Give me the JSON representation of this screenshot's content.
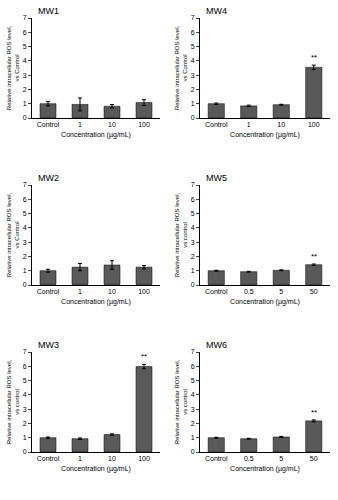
{
  "chart_data": [
    {
      "type": "bar",
      "title": "MW1",
      "categories": [
        "Control",
        "1",
        "10",
        "100"
      ],
      "values": [
        1.0,
        0.95,
        0.82,
        1.08
      ],
      "errors": [
        0.15,
        0.45,
        0.12,
        0.2
      ],
      "color": "#595959",
      "ylim": [
        0,
        7
      ],
      "yticks": [
        0,
        1,
        2,
        3,
        4,
        5,
        6,
        7
      ],
      "grid": false,
      "x_label": "Concentration (µg/mL)",
      "y_label": "Relative intracellular ROS level, vs Control",
      "annotations": []
    },
    {
      "type": "bar",
      "title": "MW2",
      "categories": [
        "Control",
        "1",
        "10",
        "100"
      ],
      "values": [
        1.0,
        1.25,
        1.4,
        1.25
      ],
      "errors": [
        0.1,
        0.25,
        0.3,
        0.12
      ],
      "color": "#595959",
      "ylim": [
        0,
        7
      ],
      "yticks": [
        0,
        1,
        2,
        3,
        4,
        5,
        6,
        7
      ],
      "grid": false,
      "x_label": "Concentration (µg/mL)",
      "y_label": "Relative intracellular ROS level, vs Control",
      "annotations": []
    },
    {
      "type": "bar",
      "title": "MW3",
      "categories": [
        "Control",
        "1",
        "10",
        "100"
      ],
      "values": [
        1.0,
        0.93,
        1.22,
        5.98
      ],
      "errors": [
        0.05,
        0.05,
        0.05,
        0.15
      ],
      "color": "#595959",
      "ylim": [
        0,
        7
      ],
      "yticks": [
        0,
        1,
        2,
        3,
        4,
        5,
        6,
        7
      ],
      "grid": false,
      "x_label": "Concentration (µg/mL)",
      "y_label": "Relative intracellular ROS level, vs control",
      "annotations": [
        {
          "category": "100",
          "text": "**"
        }
      ]
    },
    {
      "type": "bar",
      "title": "MW4",
      "categories": [
        "Control",
        "1",
        "10",
        "100"
      ],
      "values": [
        1.0,
        0.85,
        0.93,
        3.55
      ],
      "errors": [
        0.05,
        0.05,
        0.03,
        0.15
      ],
      "color": "#595959",
      "ylim": [
        0,
        7
      ],
      "yticks": [
        0,
        1,
        2,
        3,
        4,
        5,
        6,
        7
      ],
      "grid": false,
      "x_label": "Concentration (µg/mL)",
      "y_label": "Relative intracellular ROS level, vs Control",
      "annotations": [
        {
          "category": "100",
          "text": "**"
        }
      ]
    },
    {
      "type": "bar",
      "title": "MW5",
      "categories": [
        "Control",
        "0.5",
        "5",
        "50"
      ],
      "values": [
        1.0,
        0.93,
        1.03,
        1.42
      ],
      "errors": [
        0.03,
        0.03,
        0.03,
        0.05
      ],
      "color": "#595959",
      "ylim": [
        0,
        7
      ],
      "yticks": [
        0,
        1,
        2,
        3,
        4,
        5,
        6,
        7
      ],
      "grid": false,
      "x_label": "Concentration (µg/mL)",
      "y_label": "Relative intracellular ROS level, vs control",
      "annotations": [
        {
          "category": "50",
          "text": "**"
        }
      ]
    },
    {
      "type": "bar",
      "title": "MW6",
      "categories": [
        "Control",
        "0.5",
        "5",
        "50"
      ],
      "values": [
        1.0,
        0.93,
        1.05,
        2.18
      ],
      "errors": [
        0.03,
        0.03,
        0.04,
        0.07
      ],
      "color": "#595959",
      "ylim": [
        0,
        7
      ],
      "yticks": [
        0,
        1,
        2,
        3,
        4,
        5,
        6,
        7
      ],
      "grid": false,
      "x_label": "Concentration (µg/mL)",
      "y_label": "Relative intracellular ROS level, vs control",
      "annotations": [
        {
          "category": "50",
          "text": "**"
        }
      ]
    }
  ]
}
